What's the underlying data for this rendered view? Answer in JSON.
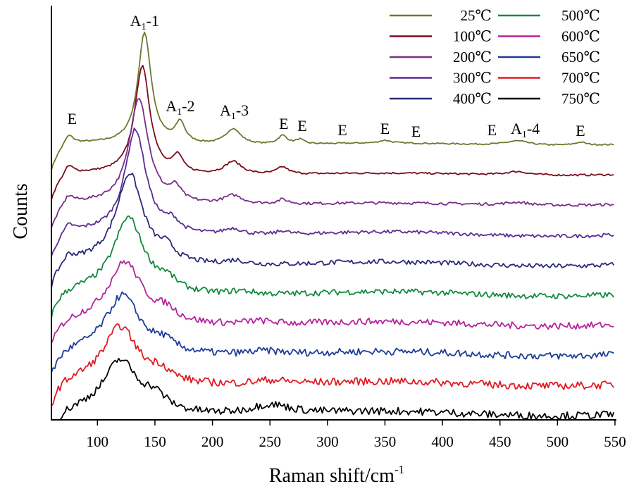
{
  "chart_data": {
    "type": "line",
    "xlabel": "Raman shift/cm",
    "xlabel_sup": "-1",
    "ylabel": "Counts",
    "xlim": [
      60,
      550
    ],
    "xticks": [
      100,
      150,
      200,
      250,
      300,
      350,
      400,
      450,
      500,
      550
    ],
    "y_scale": "arbitrary units, curves vertically offset",
    "grid": false,
    "legend_position": "top-right",
    "series": [
      {
        "name": "25℃",
        "color": "#6b7a2e",
        "offset": 0,
        "peaks": [
          [
            75,
            15,
            5
          ],
          [
            141,
            155,
            7
          ],
          [
            172,
            28,
            5
          ],
          [
            218,
            22,
            8
          ],
          [
            261,
            12,
            5
          ],
          [
            276,
            6,
            4
          ],
          [
            350,
            4,
            6
          ],
          [
            465,
            6,
            12
          ],
          [
            520,
            4,
            6
          ]
        ],
        "noise": 0.6
      },
      {
        "name": "100℃",
        "color": "#7a0c1e",
        "offset": 1,
        "peaks": [
          [
            75,
            14,
            5
          ],
          [
            139,
            150,
            8
          ],
          [
            170,
            22,
            5
          ],
          [
            218,
            18,
            9
          ],
          [
            261,
            10,
            6
          ],
          [
            465,
            5,
            12
          ]
        ],
        "noise": 0.8
      },
      {
        "name": "200℃",
        "color": "#7a2d8a",
        "offset": 2,
        "peaks": [
          [
            75,
            13,
            5
          ],
          [
            136,
            148,
            10
          ],
          [
            168,
            18,
            6
          ],
          [
            218,
            12,
            10
          ],
          [
            261,
            6,
            6
          ],
          [
            465,
            4,
            12
          ]
        ],
        "noise": 1.2
      },
      {
        "name": "300℃",
        "color": "#5b2c91",
        "offset": 3,
        "peaks": [
          [
            75,
            12,
            5
          ],
          [
            133,
            145,
            11
          ],
          [
            165,
            14,
            7
          ],
          [
            218,
            9,
            10
          ],
          [
            261,
            5,
            6
          ]
        ],
        "noise": 1.6
      },
      {
        "name": "400℃",
        "color": "#2a2a7a",
        "offset": 4,
        "peaks": [
          [
            75,
            10,
            5
          ],
          [
            128,
            125,
            14
          ],
          [
            160,
            16,
            8
          ],
          [
            220,
            6,
            12
          ]
        ],
        "noise": 2.2
      },
      {
        "name": "500℃",
        "color": "#128a3e",
        "offset": 5,
        "peaks": [
          [
            127,
            105,
            16
          ],
          [
            160,
            14,
            10
          ],
          [
            225,
            5,
            14
          ]
        ],
        "noise": 2.6
      },
      {
        "name": "600℃",
        "color": "#b5249a",
        "offset": 6,
        "peaks": [
          [
            124,
            85,
            18
          ],
          [
            160,
            14,
            10
          ],
          [
            240,
            5,
            18
          ]
        ],
        "noise": 3.0
      },
      {
        "name": "650℃",
        "color": "#1f3d99",
        "offset": 7,
        "peaks": [
          [
            122,
            80,
            18
          ],
          [
            158,
            12,
            10
          ],
          [
            245,
            5,
            20
          ]
        ],
        "noise": 3.2
      },
      {
        "name": "700℃",
        "color": "#e01b24",
        "offset": 8,
        "peaks": [
          [
            120,
            78,
            18
          ],
          [
            155,
            14,
            10
          ],
          [
            250,
            6,
            20
          ]
        ],
        "noise": 3.4
      },
      {
        "name": "750℃",
        "color": "#000000",
        "offset": 9,
        "peaks": [
          [
            120,
            72,
            18
          ],
          [
            150,
            18,
            12
          ],
          [
            250,
            14,
            22
          ]
        ],
        "noise": 3.4
      }
    ],
    "annotations": [
      {
        "id": "e1",
        "base": "E",
        "sub": "",
        "suffix": "",
        "x": 78
      },
      {
        "id": "a11",
        "base": "A",
        "sub": "1",
        "suffix": "-1",
        "x": 141
      },
      {
        "id": "a12",
        "base": "A",
        "sub": "1",
        "suffix": "-2",
        "x": 172
      },
      {
        "id": "a13",
        "base": "A",
        "sub": "1",
        "suffix": "-3",
        "x": 219
      },
      {
        "id": "e2",
        "base": "E",
        "sub": "",
        "suffix": "",
        "x": 262
      },
      {
        "id": "e3",
        "base": "E",
        "sub": "",
        "suffix": "",
        "x": 278
      },
      {
        "id": "e4",
        "base": "E",
        "sub": "",
        "suffix": "",
        "x": 313
      },
      {
        "id": "e5",
        "base": "E",
        "sub": "",
        "suffix": "",
        "x": 350
      },
      {
        "id": "e6",
        "base": "E",
        "sub": "",
        "suffix": "",
        "x": 377
      },
      {
        "id": "e7",
        "base": "E",
        "sub": "",
        "suffix": "",
        "x": 443
      },
      {
        "id": "a14",
        "base": "A",
        "sub": "1",
        "suffix": "-4",
        "x": 472
      },
      {
        "id": "e8",
        "base": "E",
        "sub": "",
        "suffix": "",
        "x": 520
      }
    ]
  }
}
